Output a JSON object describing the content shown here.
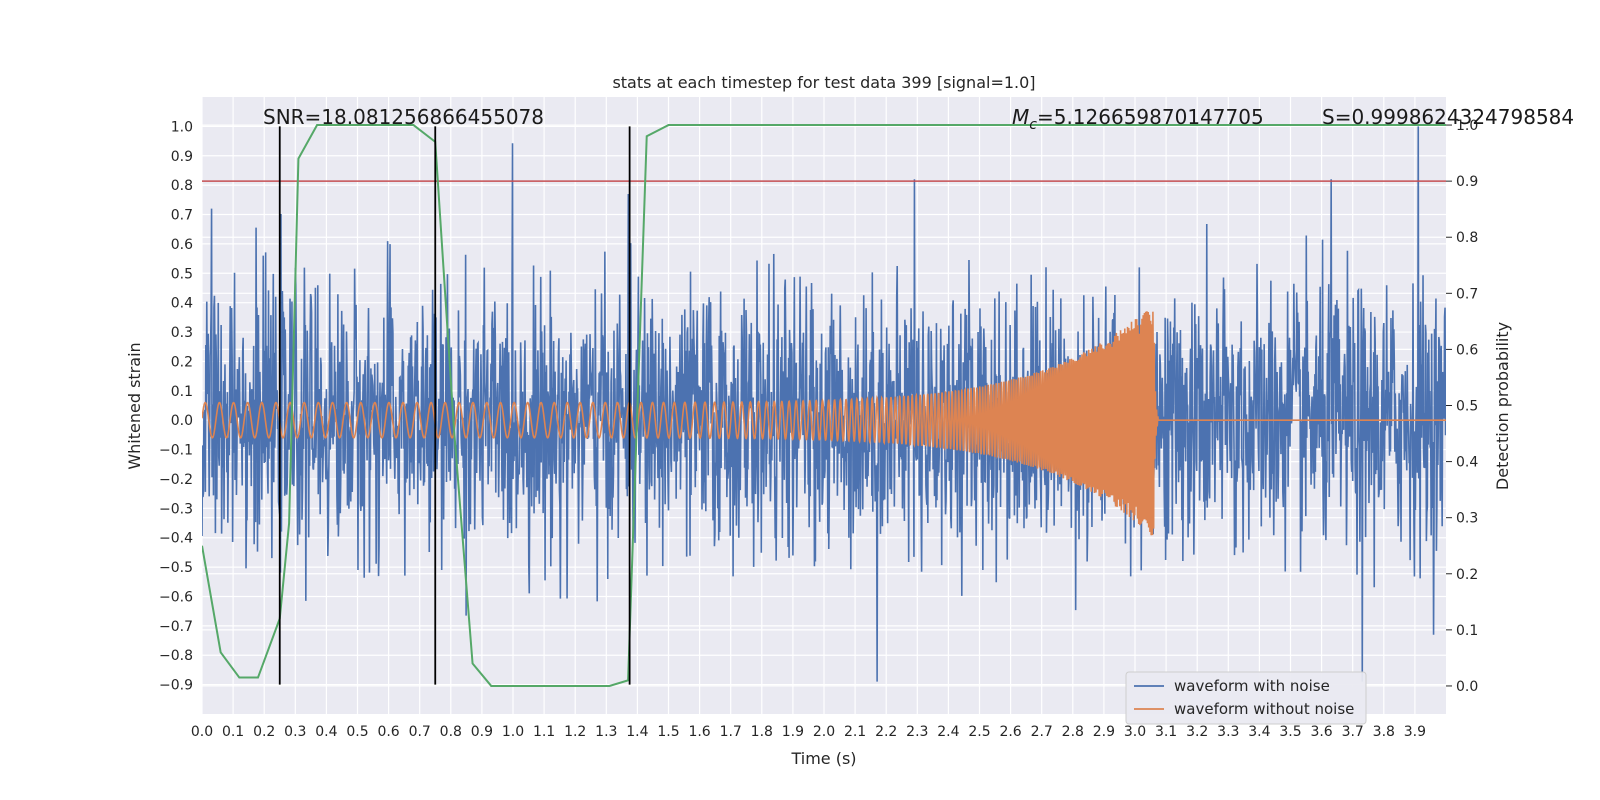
{
  "chart_data": {
    "type": "line",
    "title": "stats at each timestep for test data 399 [signal=1.0]",
    "xlabel": "Time (s)",
    "ylabel": "Whitened strain",
    "y2label": "Detection probability",
    "xlim": [
      0.0,
      4.0
    ],
    "ylim": [
      -1.0,
      1.1
    ],
    "y2lim": [
      -0.05,
      1.05
    ],
    "x_ticks": [
      "0.0",
      "0.1",
      "0.2",
      "0.3",
      "0.4",
      "0.5",
      "0.6",
      "0.7",
      "0.8",
      "0.9",
      "1.0",
      "1.1",
      "1.2",
      "1.3",
      "1.4",
      "1.5",
      "1.6",
      "1.7",
      "1.8",
      "1.9",
      "2.0",
      "2.1",
      "2.2",
      "2.3",
      "2.4",
      "2.5",
      "2.6",
      "2.7",
      "2.8",
      "2.9",
      "3.0",
      "3.1",
      "3.2",
      "3.3",
      "3.4",
      "3.5",
      "3.6",
      "3.7",
      "3.8",
      "3.9"
    ],
    "y_ticks": [
      "1.0",
      "0.9",
      "0.8",
      "0.7",
      "0.6",
      "0.5",
      "0.4",
      "0.3",
      "0.2",
      "0.1",
      "0.0",
      "−0.1",
      "−0.2",
      "−0.3",
      "−0.4",
      "−0.5",
      "−0.6",
      "−0.7",
      "−0.8",
      "−0.9"
    ],
    "y2_ticks": [
      "1.0",
      "0.9",
      "0.8",
      "0.7",
      "0.6",
      "0.5",
      "0.4",
      "0.3",
      "0.2",
      "0.1",
      "0.0"
    ],
    "grid": true,
    "legend_position": "bottom-right",
    "annotations": {
      "snr": "SNR=18.081256866455078",
      "mc_symbol": "M",
      "mc_subscript": "c",
      "mc_value": "=5.126659870147705",
      "s": "S=0.9998624324798584"
    },
    "series": [
      {
        "name": "waveform with noise",
        "color": "#4c72b0",
        "generated": "gaussian-noise",
        "amplitude_std": 0.22,
        "x_range": [
          0.0,
          4.0
        ],
        "note_peaks": [
          [
            0.03,
            0.72
          ],
          [
            2.29,
            0.82
          ],
          [
            3.63,
            0.82
          ],
          [
            3.91,
            1.0
          ],
          [
            2.17,
            -0.89
          ],
          [
            3.73,
            -0.89
          ],
          [
            1.37,
            0.77
          ]
        ]
      },
      {
        "name": "waveform without noise",
        "color": "#dd8452",
        "generated": "chirp",
        "start_amplitude": 0.06,
        "peak_amplitude": 0.4,
        "merger_time": 3.06,
        "start_frequency": 22,
        "end_frequency": 260
      },
      {
        "name": "detection probability",
        "color": "#55a868",
        "axis": "y2",
        "x": [
          0.0,
          0.06,
          0.12,
          0.18,
          0.25,
          0.28,
          0.31,
          0.37,
          0.43,
          0.5,
          0.56,
          0.62,
          0.68,
          0.75,
          0.81,
          0.87,
          0.93,
          1.0,
          1.06,
          1.12,
          1.18,
          1.25,
          1.31,
          1.37,
          1.43,
          1.5,
          1.56,
          1.62,
          2.5,
          3.5,
          4.0
        ],
        "y": [
          0.25,
          0.06,
          0.015,
          0.015,
          0.12,
          0.29,
          0.94,
          1.0,
          1.0,
          1.0,
          1.0,
          1.0,
          1.0,
          0.97,
          0.46,
          0.04,
          0.0,
          0.0,
          0.0,
          0.0,
          0.0,
          0.0,
          0.0,
          0.01,
          0.98,
          1.0,
          1.0,
          1.0,
          1.0,
          1.0,
          1.0
        ]
      },
      {
        "name": "threshold",
        "color": "#c44e52",
        "axis": "y2",
        "y": 0.9
      }
    ],
    "vertical_lines": [
      0.25,
      0.75,
      1.375
    ],
    "vertical_line_range": [
      -0.9,
      1.0
    ]
  }
}
